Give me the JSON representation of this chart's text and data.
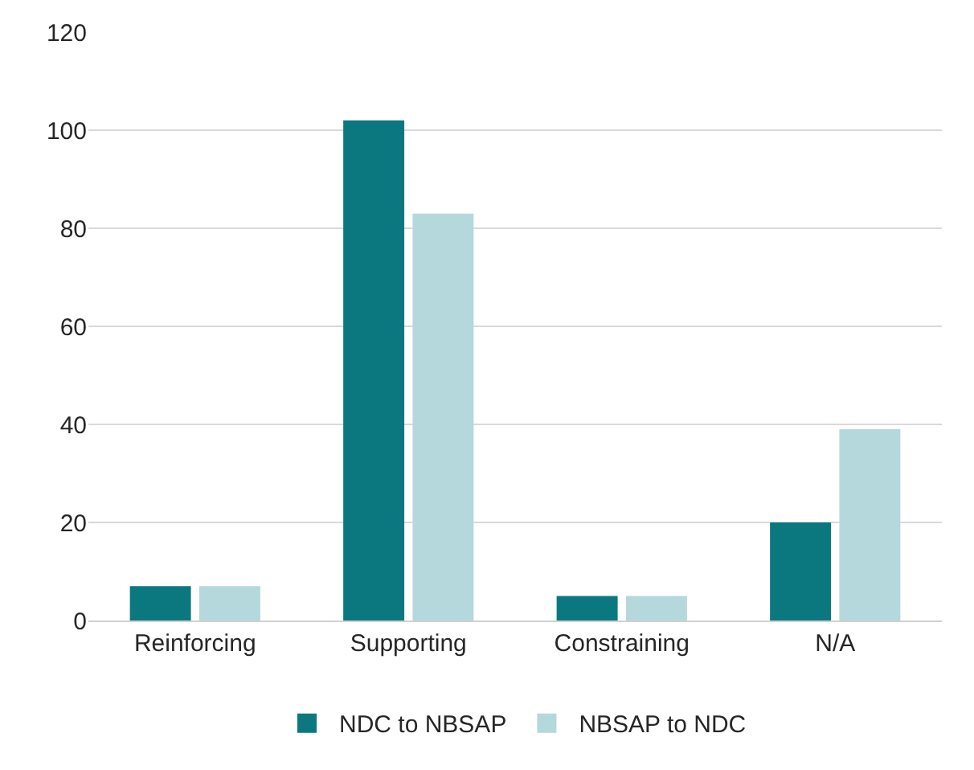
{
  "chart_data": {
    "type": "bar",
    "categories": [
      "Reinforcing",
      "Supporting",
      "Constraining",
      "N/A"
    ],
    "series": [
      {
        "name": "NDC to NBSAP",
        "color": "#0b7880",
        "values": [
          7,
          102,
          5,
          20
        ]
      },
      {
        "name": "NBSAP to NDC",
        "color": "#b5d8dc",
        "values": [
          7,
          83,
          5,
          39
        ]
      }
    ],
    "ylim": [
      0,
      120
    ],
    "yticks": [
      0,
      20,
      40,
      60,
      80,
      100,
      120
    ],
    "grid": "y",
    "legend": "bottom"
  }
}
